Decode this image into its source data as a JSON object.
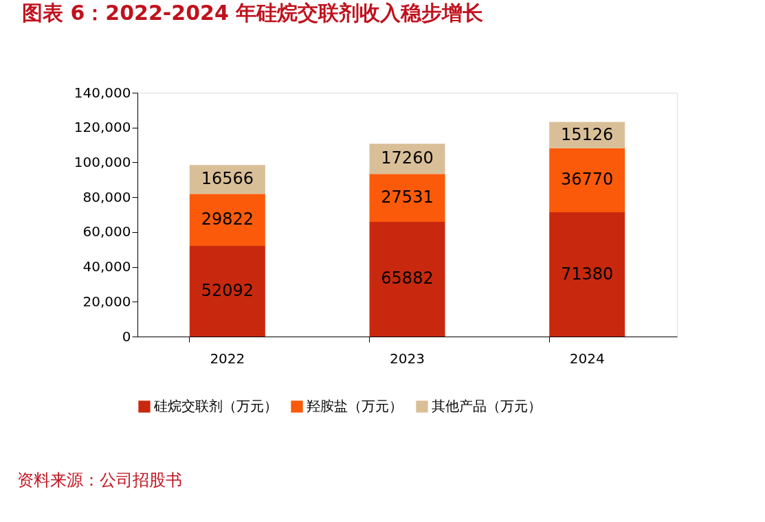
{
  "chart_data": {
    "type": "bar",
    "title": "图表 6：2022-2024 年硅烷交联剂收入稳步增长",
    "categories": [
      "2022",
      "2023",
      "2024"
    ],
    "stacked": true,
    "series": [
      {
        "name": "硅烷交联剂（万元）",
        "color": "#c8290e",
        "values": [
          52092,
          65882,
          71380
        ]
      },
      {
        "name": "羟胺盐（万元）",
        "color": "#fa5a0a",
        "values": [
          29822,
          27531,
          36770
        ]
      },
      {
        "name": "其他产品（万元）",
        "color": "#d9bf98",
        "values": [
          16566,
          17260,
          15126
        ]
      }
    ],
    "ylim": [
      0,
      140000
    ],
    "yticks": [
      0,
      {
        "value": 20000,
        "label": "20,000"
      },
      {
        "value": 40000,
        "label": "40,000"
      },
      {
        "value": 60000,
        "label": "60,000"
      },
      {
        "value": 80000,
        "label": "80,000"
      },
      {
        "value": 100000,
        "label": "100,000"
      },
      {
        "value": 120000,
        "label": "120,000"
      },
      {
        "value": 140000,
        "label": "140,000"
      }
    ],
    "data_labels": true,
    "grid": false,
    "legend": "bottom",
    "annotations": [
      "资料来源：公司招股书"
    ]
  }
}
